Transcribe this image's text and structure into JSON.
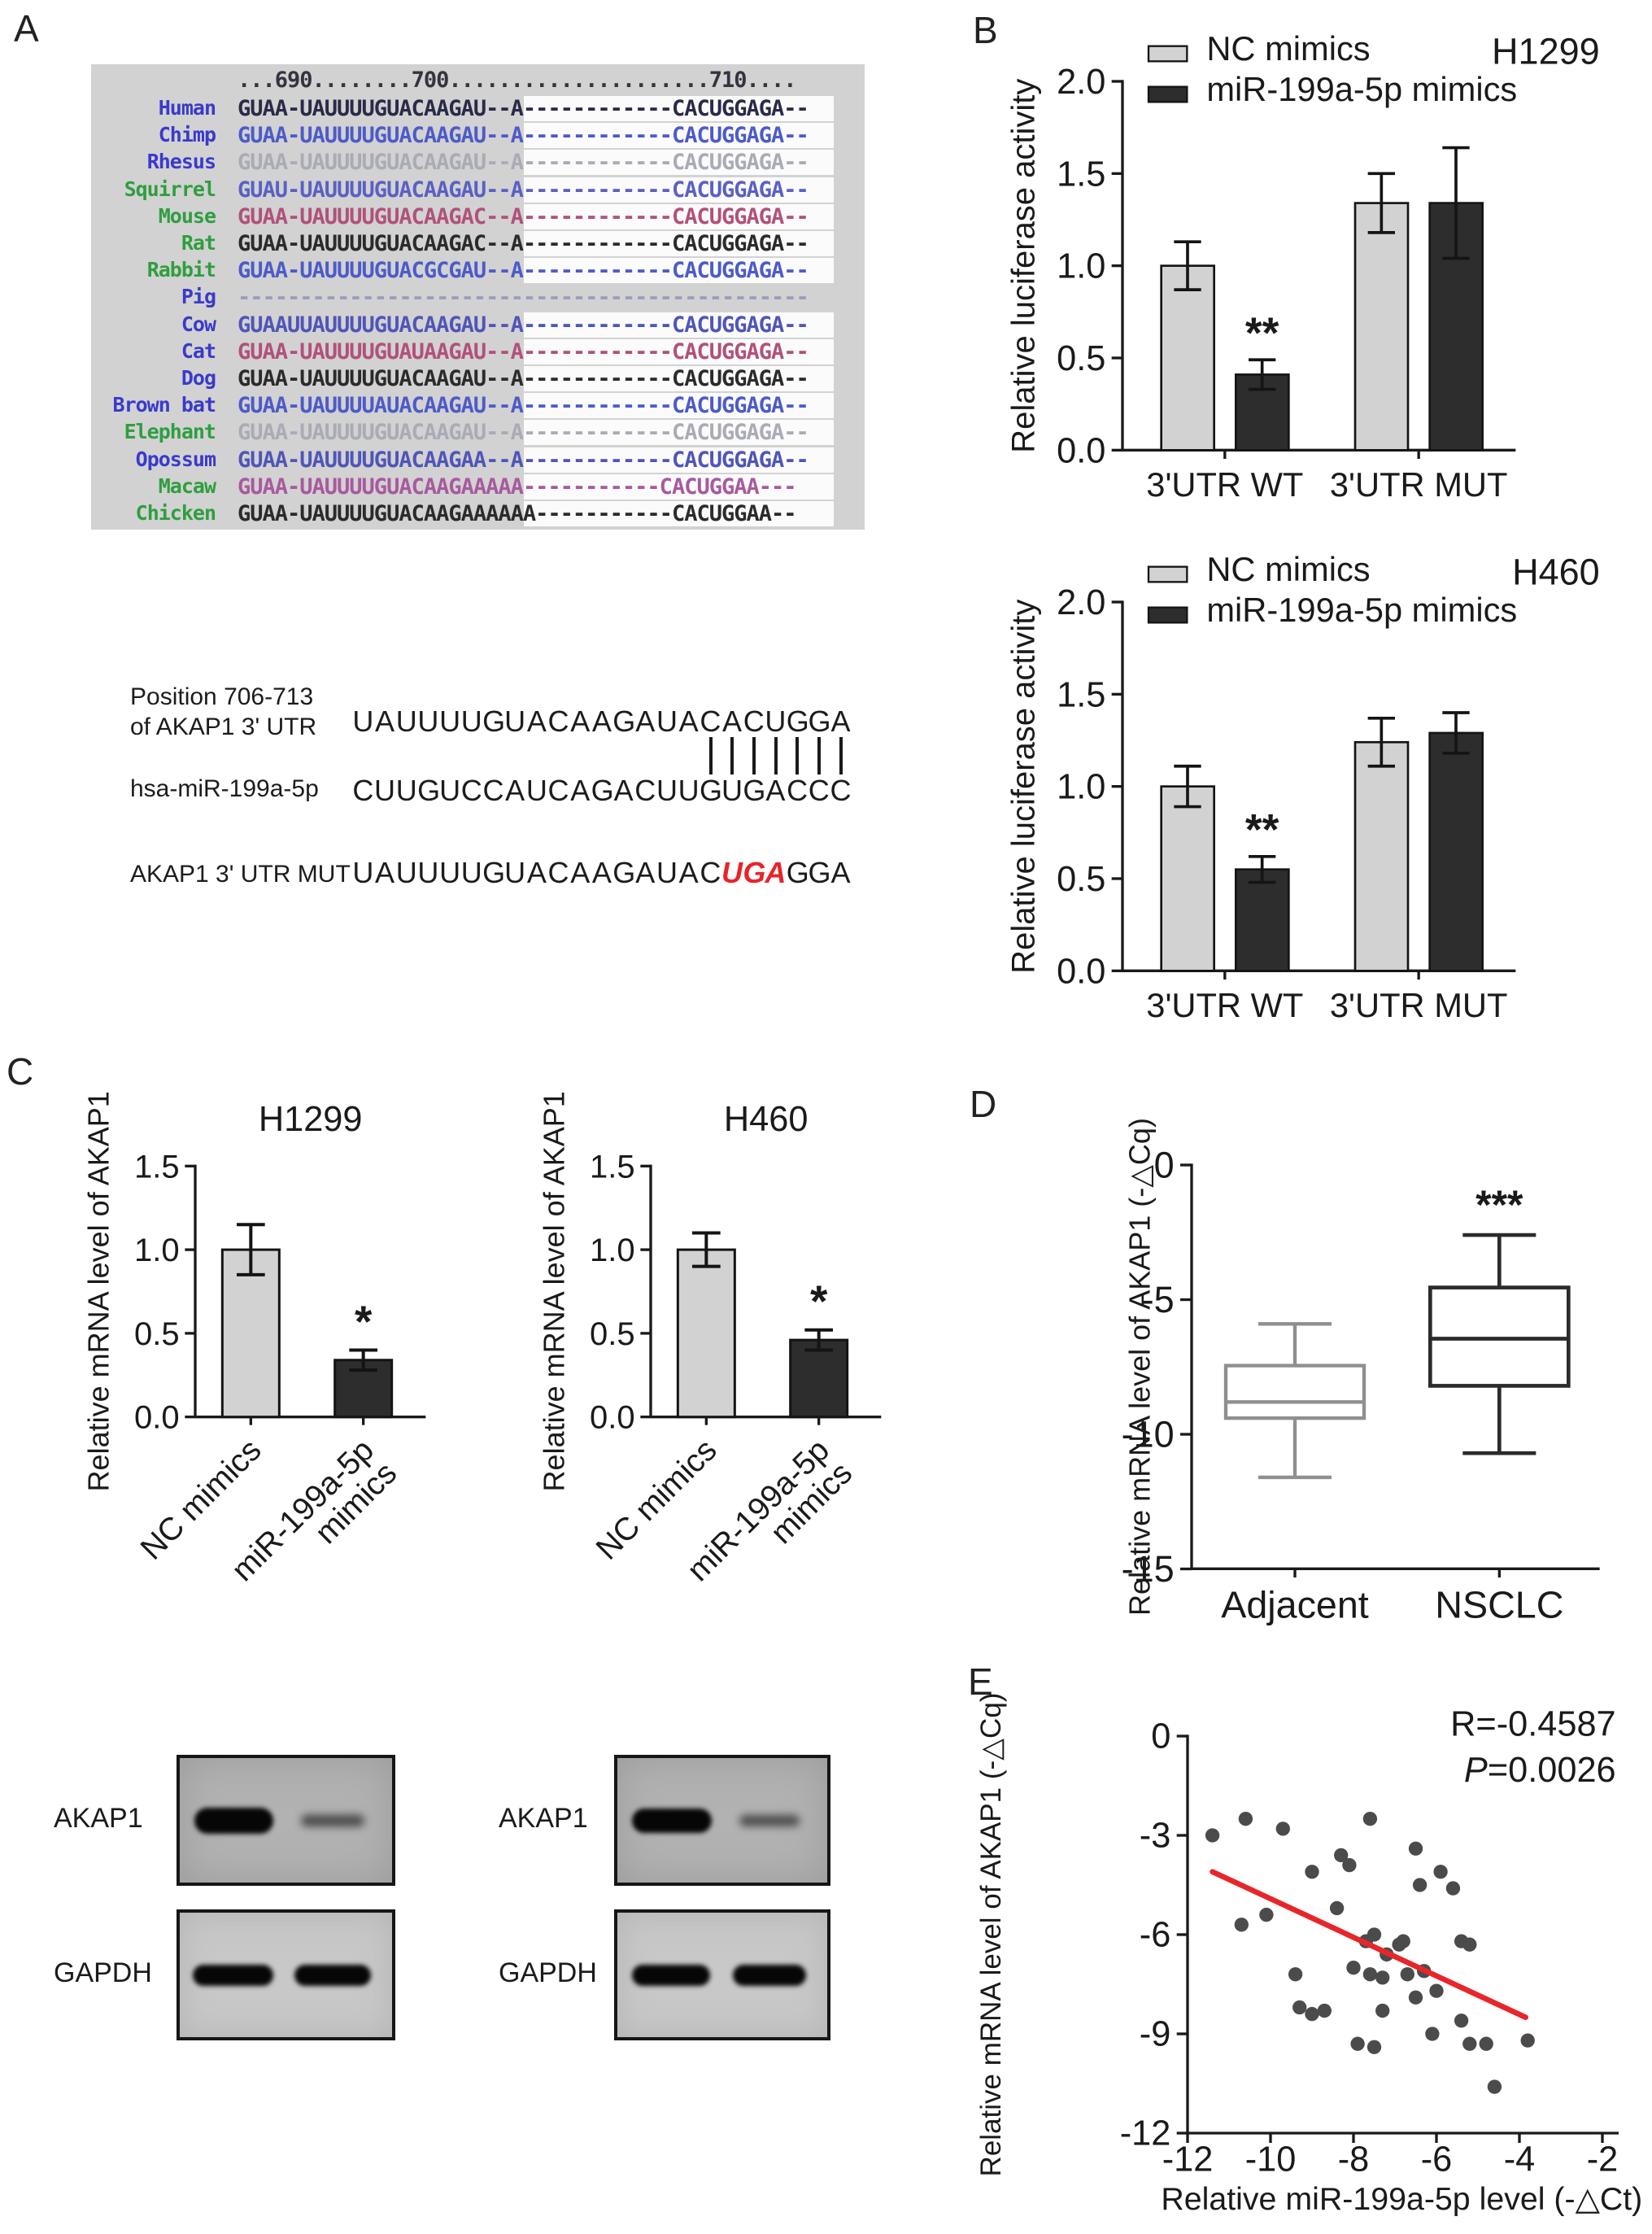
{
  "figure": {
    "panel_labels": {
      "a": "A",
      "b": "B",
      "c": "C",
      "d": "D",
      "e": "E"
    }
  },
  "alignment": {
    "header": "...690........700.....................710....",
    "bg_color": "#d2d2d2",
    "rows": [
      {
        "name": "Human",
        "name_color": "#3a3acc",
        "seq_color": "#2a2a48",
        "left": "GUAA-UAUUUUGUACAAGAU--A",
        "gap": "------------",
        "right": "CACUGGAGA--",
        "gap_only": false,
        "highlight": true
      },
      {
        "name": "Chimp",
        "name_color": "#3a3acc",
        "seq_color": "#4d5bc8",
        "left": "GUAA-UAUUUUGUACAAGAU--A",
        "gap": "------------",
        "right": "CACUGGAGA--",
        "gap_only": false,
        "highlight": true
      },
      {
        "name": "Rhesus",
        "name_color": "#3a3acc",
        "seq_color": "#a9abb6",
        "left": "GUAA-UAUUUUGUACAAGAU--A",
        "gap": "------------",
        "right": "CACUGGAGA--",
        "gap_only": false,
        "highlight": true
      },
      {
        "name": "Squirrel",
        "name_color": "#2f9e3f",
        "seq_color": "#5b60c4",
        "left": "GUAU-UAUUUUGUACAAGAU--A",
        "gap": "------------",
        "right": "CACUGGAGA--",
        "gap_only": false,
        "highlight": true
      },
      {
        "name": "Mouse",
        "name_color": "#2f9e3f",
        "seq_color": "#b1517c",
        "left": "GUAA-UAUUUUGUACAAGAC--A",
        "gap": "------------",
        "right": "CACUGGAGA--",
        "gap_only": false,
        "highlight": true
      },
      {
        "name": "Rat",
        "name_color": "#2f9e3f",
        "seq_color": "#2b2b2b",
        "left": "GUAA-UAUUUUGUACAAGAC--A",
        "gap": "------------",
        "right": "CACUGGAGA--",
        "gap_only": false,
        "highlight": true
      },
      {
        "name": "Rabbit",
        "name_color": "#2f9e3f",
        "seq_color": "#4d5bc8",
        "left": "GUAA-UAUUUUGUACGCGAU--A",
        "gap": "------------",
        "right": "CACUGGAGA--",
        "gap_only": false,
        "highlight": true
      },
      {
        "name": "Pig",
        "name_color": "#3a3acc",
        "seq_color": "#989ebc",
        "left": "",
        "gap": "----------------------------------------------",
        "right": "",
        "gap_only": true,
        "highlight": false
      },
      {
        "name": "Cow",
        "name_color": "#3a3acc",
        "seq_color": "#5055b8",
        "left": "GUAAUUAUUUUGUACAAGAU--A",
        "gap": "------------",
        "right": "CACUGGAGA--",
        "gap_only": false,
        "highlight": true
      },
      {
        "name": "Cat",
        "name_color": "#3a3acc",
        "seq_color": "#b1517c",
        "left": "GUAA-UAUUUUGUAUAAGAU--A",
        "gap": "------------",
        "right": "CACUGGAGA--",
        "gap_only": false,
        "highlight": true
      },
      {
        "name": "Dog",
        "name_color": "#3a3acc",
        "seq_color": "#2b2b2b",
        "left": "GUAA-UAUUUUGUACAAGAU--A",
        "gap": "------------",
        "right": "CACUGGAGA--",
        "gap_only": false,
        "highlight": true
      },
      {
        "name": "Brown bat",
        "name_color": "#3a3acc",
        "seq_color": "#4d5bc8",
        "left": "GUAA-UAUUUUAUACAAGAU--A",
        "gap": "------------",
        "right": "CACUGGAGA--",
        "gap_only": false,
        "highlight": true
      },
      {
        "name": "Elephant",
        "name_color": "#2f9e3f",
        "seq_color": "#a9abb6",
        "left": "GUAA-UAUUUUGUACAAGAU--A",
        "gap": "------------",
        "right": "CACUGGAGA--",
        "gap_only": false,
        "highlight": true
      },
      {
        "name": "Opossum",
        "name_color": "#3a3acc",
        "seq_color": "#5055b8",
        "left": "GUAA-UAUUUUGUACAAGAA--A",
        "gap": "------------",
        "right": "CACUGGAGA--",
        "gap_only": false,
        "highlight": true
      },
      {
        "name": "Macaw",
        "name_color": "#2f9e3f",
        "seq_color": "#a85a9e",
        "left": "GUAA-UAUUUUGUACAAGAAAAA",
        "gap": "-----------",
        "right": "CACUGGAA---",
        "gap_only": false,
        "highlight": true
      },
      {
        "name": "Chicken",
        "name_color": "#2f9e3f",
        "seq_color": "#2b2b2b",
        "left": "GUAA-UAUUUUGUACAAGAAAAAA",
        "gap": "-----------",
        "right": "CACUGGAA--",
        "gap_only": false,
        "highlight": true
      }
    ]
  },
  "pairing": {
    "wt_label_line1": "Position 706-713",
    "wt_label_line2": "of AKAP1 3' UTR",
    "wt_seq": "UAUUUUGUACAAGAUACACUGGA",
    "mir_label": "hsa-miR-199a-5p",
    "mir_seq": "CUUGUCCAUCAGACUUGUGACCC",
    "mut_label": "AKAP1 3' UTR MUT",
    "mut_seq_pre": "UAUUUUGUACAAGAUAC",
    "mut_seq_red": "UGA",
    "mut_seq_post": "GGA",
    "bond_indices": [
      16,
      17,
      18,
      19,
      20,
      21,
      22
    ],
    "red_color": "#e8242a"
  },
  "chart_data": [
    {
      "id": "b1",
      "type": "bar",
      "title": "H1299",
      "ylabel": "Relative luciferase activity",
      "ylim": [
        0,
        2.0
      ],
      "yticks": [
        "0.0",
        "0.5",
        "1.0",
        "1.5",
        "2.0"
      ],
      "ytick_values": [
        0,
        0.5,
        1,
        1.5,
        2
      ],
      "categories": [
        "3'UTR WT",
        "3'UTR MUT"
      ],
      "series": [
        {
          "name": "NC mimics",
          "color": "#d2d2d2",
          "values": [
            1.0,
            1.34
          ],
          "errors": [
            0.13,
            0.16
          ]
        },
        {
          "name": "miR-199a-5p mimics",
          "color": "#2d2d2d",
          "values": [
            0.41,
            1.34
          ],
          "errors": [
            0.08,
            0.3
          ]
        }
      ],
      "sig": [
        {
          "series": 1,
          "cat": 0,
          "label": "**"
        }
      ],
      "legend": true
    },
    {
      "id": "b2",
      "type": "bar",
      "title": "H460",
      "ylabel": "Relative luciferase activity",
      "ylim": [
        0,
        2.0
      ],
      "yticks": [
        "0.0",
        "0.5",
        "1.0",
        "1.5",
        "2.0"
      ],
      "ytick_values": [
        0,
        0.5,
        1,
        1.5,
        2
      ],
      "categories": [
        "3'UTR WT",
        "3'UTR MUT"
      ],
      "series": [
        {
          "name": "NC mimics",
          "color": "#d2d2d2",
          "values": [
            1.0,
            1.24
          ],
          "errors": [
            0.11,
            0.13
          ]
        },
        {
          "name": "miR-199a-5p mimics",
          "color": "#2d2d2d",
          "values": [
            0.55,
            1.29
          ],
          "errors": [
            0.07,
            0.11
          ]
        }
      ],
      "sig": [
        {
          "series": 1,
          "cat": 0,
          "label": "**"
        }
      ],
      "legend": true
    },
    {
      "id": "c1",
      "type": "bar",
      "title": "H1299",
      "ylabel": "Relative mRNA level of AKAP1",
      "ylim": [
        0,
        1.5
      ],
      "yticks": [
        "0.0",
        "0.5",
        "1.0",
        "1.5"
      ],
      "ytick_values": [
        0,
        0.5,
        1,
        1.5
      ],
      "bars": [
        {
          "label": "NC mimics",
          "value": 1.0,
          "error": 0.15,
          "color": "#d2d2d2",
          "sig": ""
        },
        {
          "label": "miR-199a-5p\nmimics",
          "value": 0.34,
          "error": 0.06,
          "color": "#2d2d2d",
          "sig": "*"
        }
      ]
    },
    {
      "id": "c2",
      "type": "bar",
      "title": "H460",
      "ylabel": "Relative mRNA level of AKAP1",
      "ylim": [
        0,
        1.5
      ],
      "yticks": [
        "0.0",
        "0.5",
        "1.0",
        "1.5"
      ],
      "ytick_values": [
        0,
        0.5,
        1,
        1.5
      ],
      "bars": [
        {
          "label": "NC mimics",
          "value": 1.0,
          "error": 0.1,
          "color": "#d2d2d2",
          "sig": ""
        },
        {
          "label": "miR-199a-5p\nmimics",
          "value": 0.46,
          "error": 0.06,
          "color": "#2d2d2d",
          "sig": "*"
        }
      ]
    },
    {
      "id": "d",
      "type": "box",
      "ylabel": "Relative mRNA level of AKAP1 (-△Cq)",
      "ylim": [
        -15,
        0
      ],
      "yticks": [
        "0",
        "-5",
        "-10",
        "-15"
      ],
      "ytick_values": [
        0,
        -5,
        -10,
        -15
      ],
      "boxes": [
        {
          "label": "Adjacent",
          "color": "#8f8f8f",
          "min": -11.6,
          "q1": -9.4,
          "median": -8.8,
          "q3": -7.45,
          "max": -5.9,
          "sig": ""
        },
        {
          "label": "NSCLC",
          "color": "#2b2b2b",
          "min": -10.7,
          "q1": -8.2,
          "median": -6.45,
          "q3": -4.55,
          "max": -2.6,
          "sig": "***"
        }
      ]
    },
    {
      "id": "e",
      "type": "scatter",
      "xlabel": "Relative miR-199a-5p level (-△Ct)",
      "ylabel": "Relative mRNA level of AKAP1 (-△Cq)",
      "xlim": [
        -12,
        -2
      ],
      "ylim": [
        -12,
        0
      ],
      "xticks": [
        "-12",
        "-10",
        "-8",
        "-6",
        "-4",
        "-2"
      ],
      "xtick_values": [
        -12,
        -10,
        -8,
        -6,
        -4,
        -2
      ],
      "yticks": [
        "0",
        "-3",
        "-6",
        "-9",
        "-12"
      ],
      "ytick_values": [
        0,
        -3,
        -6,
        -9,
        -12
      ],
      "r_label": "R=-0.4587",
      "p_italic": "P",
      "p_rest": "=0.0026",
      "trend": {
        "x1": -11.4,
        "y1": -4.1,
        "x2": -3.85,
        "y2": -8.5,
        "color": "#e8262a"
      },
      "point_color": "#4b4b4b",
      "points": [
        [
          -11.4,
          -3.0
        ],
        [
          -10.6,
          -2.5
        ],
        [
          -9.7,
          -2.8
        ],
        [
          -9.0,
          -4.1
        ],
        [
          -8.3,
          -3.6
        ],
        [
          -8.1,
          -3.9
        ],
        [
          -8.4,
          -5.2
        ],
        [
          -10.1,
          -5.4
        ],
        [
          -10.7,
          -5.7
        ],
        [
          -7.6,
          -2.5
        ],
        [
          -6.5,
          -3.4
        ],
        [
          -6.4,
          -4.5
        ],
        [
          -5.9,
          -4.1
        ],
        [
          -5.6,
          -4.6
        ],
        [
          -7.7,
          -6.2
        ],
        [
          -7.5,
          -6.0
        ],
        [
          -7.2,
          -6.6
        ],
        [
          -6.9,
          -6.3
        ],
        [
          -6.8,
          -6.2
        ],
        [
          -6.7,
          -7.2
        ],
        [
          -6.3,
          -7.1
        ],
        [
          -6.0,
          -7.7
        ],
        [
          -8.0,
          -7.0
        ],
        [
          -7.6,
          -7.2
        ],
        [
          -9.4,
          -7.2
        ],
        [
          -7.3,
          -7.3
        ],
        [
          -9.3,
          -8.2
        ],
        [
          -9.0,
          -8.4
        ],
        [
          -8.7,
          -8.3
        ],
        [
          -7.3,
          -8.3
        ],
        [
          -6.5,
          -7.9
        ],
        [
          -7.9,
          -9.3
        ],
        [
          -7.5,
          -9.4
        ],
        [
          -6.1,
          -9.0
        ],
        [
          -5.4,
          -8.6
        ],
        [
          -5.4,
          -6.2
        ],
        [
          -5.2,
          -6.3
        ],
        [
          -5.2,
          -9.3
        ],
        [
          -4.8,
          -9.3
        ],
        [
          -4.6,
          -10.6
        ],
        [
          -3.8,
          -9.2
        ]
      ]
    }
  ],
  "blots": {
    "groups": [
      {
        "rows": [
          {
            "label": "AKAP1",
            "lane1": "strong",
            "lane2": "faint"
          },
          {
            "label": "GAPDH",
            "lane1": "strong",
            "lane2": "strong"
          }
        ]
      },
      {
        "rows": [
          {
            "label": "AKAP1",
            "lane1": "strong",
            "lane2": "faint"
          },
          {
            "label": "GAPDH",
            "lane1": "strong",
            "lane2": "strong"
          }
        ]
      }
    ]
  }
}
